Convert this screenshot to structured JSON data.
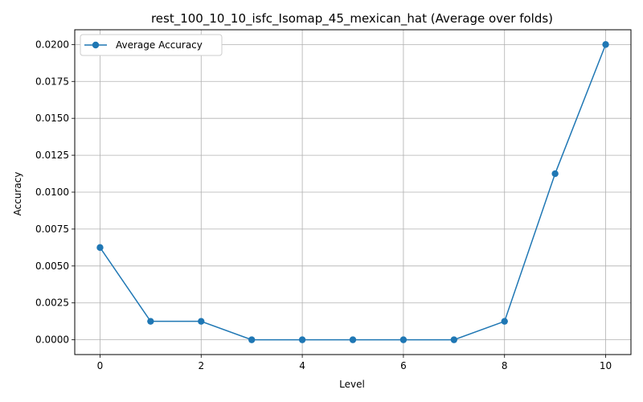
{
  "chart_data": {
    "type": "line",
    "title": "rest_100_10_10_isfc_Isomap_45_mexican_hat (Average over folds)",
    "xlabel": "Level",
    "ylabel": "Accuracy",
    "xlim": [
      -0.5,
      10.5
    ],
    "ylim": [
      -0.001,
      0.021
    ],
    "xticks": [
      0,
      2,
      4,
      6,
      8,
      10
    ],
    "xtick_labels": [
      "0",
      "2",
      "4",
      "6",
      "8",
      "10"
    ],
    "yticks": [
      0.0,
      0.0025,
      0.005,
      0.0075,
      0.01,
      0.0125,
      0.015,
      0.0175,
      0.02
    ],
    "ytick_labels": [
      "0.0000",
      "0.0025",
      "0.0050",
      "0.0075",
      "0.0100",
      "0.0125",
      "0.0150",
      "0.0175",
      "0.0200"
    ],
    "grid": true,
    "legend_position": "top-left",
    "series": [
      {
        "name": "Average Accuracy",
        "color": "#1f77b4",
        "marker": "circle",
        "x": [
          0,
          1,
          2,
          3,
          4,
          5,
          6,
          7,
          8,
          9,
          10
        ],
        "y": [
          0.00625,
          0.00125,
          0.00125,
          0.0,
          0.0,
          0.0,
          0.0,
          0.0,
          0.00125,
          0.01125,
          0.02
        ]
      }
    ]
  }
}
